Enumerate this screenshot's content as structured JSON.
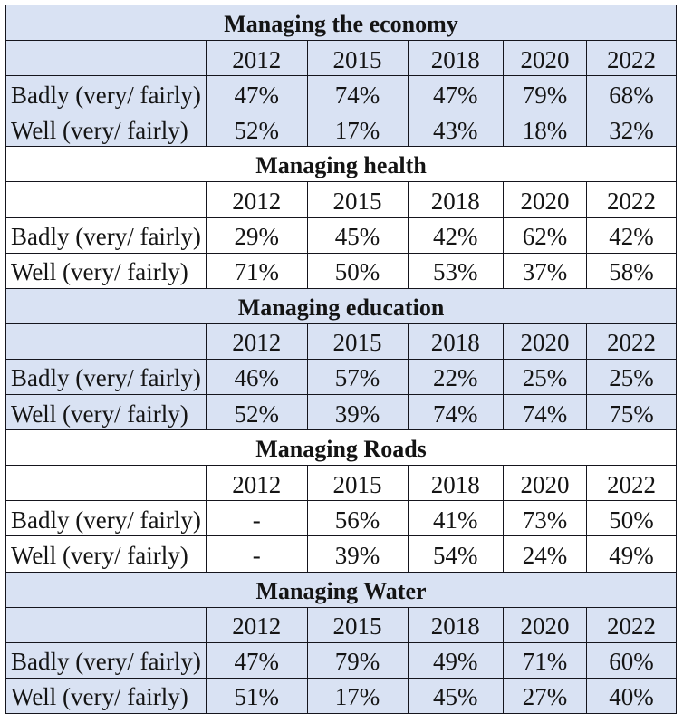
{
  "page": {
    "background": "#ffffff"
  },
  "table": {
    "colors": {
      "shaded_section_bg": "#d9e2f3",
      "plain_section_bg": "#ffffff",
      "border": "#15151d",
      "text": "#141414"
    },
    "sections": [
      {
        "title": "Managing the economy",
        "shaded": true,
        "years": [
          "2012",
          "2015",
          "2018",
          "2020",
          "2022"
        ],
        "rows": [
          {
            "label": "Badly (very/ fairly)",
            "values": [
              "47%",
              "74%",
              "47%",
              "79%",
              "68%"
            ]
          },
          {
            "label": "Well (very/ fairly)",
            "values": [
              "52%",
              "17%",
              "43%",
              "18%",
              "32%"
            ]
          }
        ]
      },
      {
        "title": "Managing health",
        "shaded": false,
        "years": [
          "2012",
          "2015",
          "2018",
          "2020",
          "2022"
        ],
        "rows": [
          {
            "label": "Badly (very/ fairly)",
            "values": [
              "29%",
              "45%",
              "42%",
              "62%",
              "42%"
            ]
          },
          {
            "label": "Well (very/ fairly)",
            "values": [
              "71%",
              "50%",
              "53%",
              "37%",
              "58%"
            ]
          }
        ]
      },
      {
        "title": "Managing education",
        "shaded": true,
        "years": [
          "2012",
          "2015",
          "2018",
          "2020",
          "2022"
        ],
        "rows": [
          {
            "label": "Badly (very/ fairly)",
            "values": [
              "46%",
              "57%",
              "22%",
              "25%",
              "25%"
            ]
          },
          {
            "label": "Well (very/ fairly)",
            "values": [
              "52%",
              "39%",
              "74%",
              "74%",
              "75%"
            ]
          }
        ]
      },
      {
        "title": "Managing Roads",
        "shaded": false,
        "years": [
          "2012",
          "2015",
          "2018",
          "2020",
          "2022"
        ],
        "rows": [
          {
            "label": "Badly (very/ fairly)",
            "values": [
              "-",
              "56%",
              "41%",
              "73%",
              "50%"
            ]
          },
          {
            "label": "Well (very/ fairly)",
            "values": [
              "-",
              "39%",
              "54%",
              "24%",
              "49%"
            ]
          }
        ]
      },
      {
        "title": "Managing Water",
        "shaded": true,
        "years": [
          "2012",
          "2015",
          "2018",
          "2020",
          "2022"
        ],
        "rows": [
          {
            "label": "Badly (very/ fairly)",
            "values": [
              "47%",
              "79%",
              "49%",
              "71%",
              "60%"
            ]
          },
          {
            "label": "Well (very/ fairly)",
            "values": [
              "51%",
              "17%",
              "45%",
              "27%",
              "40%"
            ]
          }
        ]
      }
    ]
  }
}
